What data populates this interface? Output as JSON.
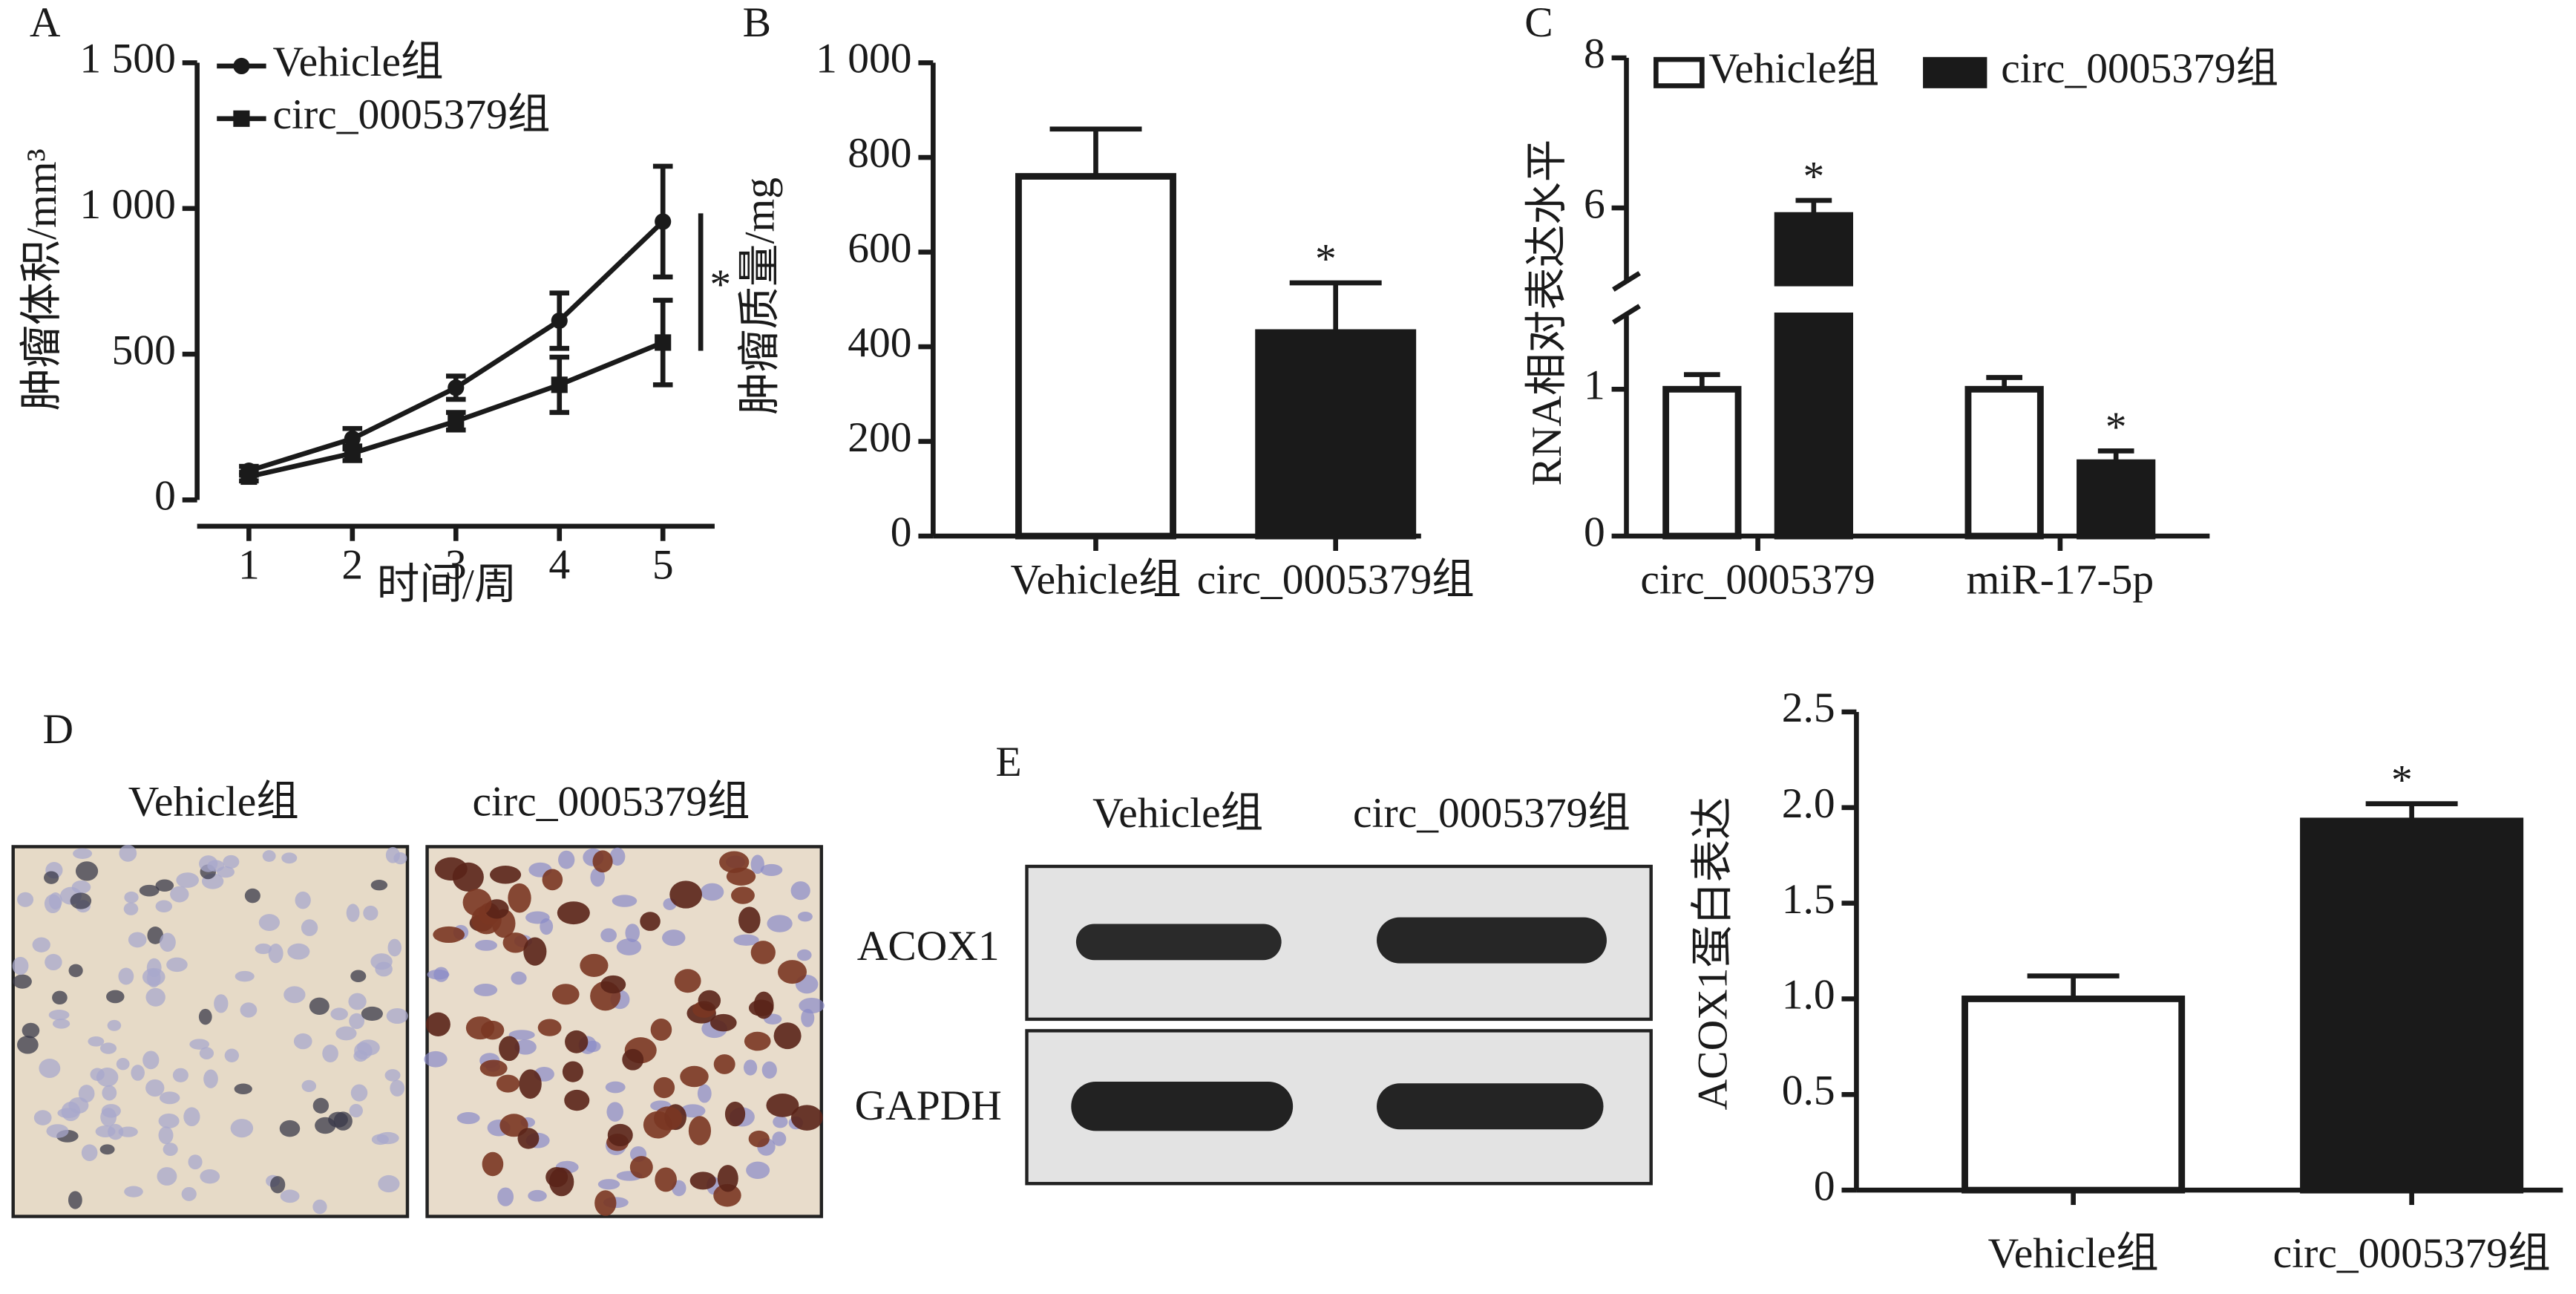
{
  "figure": {
    "panel_labels": [
      "A",
      "B",
      "C",
      "D",
      "E"
    ],
    "ihc": {
      "labels": [
        "Vehicle组",
        "circ_0005379组"
      ]
    },
    "blot": {
      "columns": [
        "Vehicle组",
        "circ_0005379组"
      ],
      "rows": [
        "ACOX1",
        "GAPDH"
      ]
    }
  },
  "chart_data": [
    {
      "type": "line",
      "y_label": "肿瘤体积/mm³",
      "x_label": "时间/周",
      "x": [
        1,
        2,
        3,
        4,
        5
      ],
      "xlim": [
        0.5,
        5.5
      ],
      "xticks": [
        1,
        2,
        3,
        4,
        5
      ],
      "ylim": [
        0,
        1500
      ],
      "yticks": [
        0,
        500,
        {
          "value": 1000,
          "label": "1 000"
        },
        {
          "value": 1500,
          "label": "1 500"
        }
      ],
      "series": [
        {
          "name": "Vehicle组",
          "color": "#1a1a1a",
          "marker": "circle",
          "values": [
            100,
            210,
            385,
            615,
            955
          ],
          "errors": [
            15,
            35,
            40,
            95,
            190
          ]
        },
        {
          "name": "circ_0005379组",
          "color": "#1a1a1a",
          "marker": "square",
          "values": [
            80,
            160,
            270,
            395,
            540
          ],
          "errors": [
            15,
            25,
            30,
            95,
            145
          ]
        }
      ],
      "annotations": [
        {
          "text": "*",
          "x": 5
        }
      ]
    },
    {
      "type": "bar",
      "y_label": "肿瘤质量/mg",
      "categories": [
        "Vehicle组",
        "circ_0005379组"
      ],
      "values": [
        760,
        430
      ],
      "errors": [
        100,
        105
      ],
      "colors": [
        "#ffffff",
        "#1a1a1a"
      ],
      "ylim": [
        0,
        1000
      ],
      "yticks": [
        0,
        200,
        400,
        600,
        800,
        {
          "value": 1000,
          "label": "1 000"
        }
      ],
      "annotations": [
        {
          "text": "*",
          "category": "circ_0005379组"
        }
      ]
    },
    {
      "type": "grouped_bar",
      "y_label": "RNA相对表达水平",
      "categories": [
        "circ_0005379",
        "miR-17-5p"
      ],
      "series": [
        {
          "name": "Vehicle组",
          "color": "#ffffff",
          "values": [
            1.0,
            1.0
          ],
          "errors": [
            0.1,
            0.08
          ]
        },
        {
          "name": "circ_0005379组",
          "color": "#1a1a1a",
          "values": [
            5.9,
            0.5
          ],
          "errors": [
            0.2,
            0.08
          ]
        }
      ],
      "ylim": [
        0,
        8
      ],
      "ybreak": [
        1.5,
        5
      ],
      "yticks": [
        0,
        1,
        6,
        8
      ],
      "annotations": [
        {
          "text": "*",
          "series": "circ_0005379组",
          "category": "circ_0005379"
        },
        {
          "text": "*",
          "series": "circ_0005379组",
          "category": "miR-17-5p"
        }
      ]
    },
    {
      "type": "bar",
      "y_label": "ACOX1蛋白表达",
      "categories": [
        "Vehicle组",
        "circ_0005379组"
      ],
      "values": [
        1.0,
        1.93
      ],
      "errors": [
        0.12,
        0.09
      ],
      "colors": [
        "#ffffff",
        "#1a1a1a"
      ],
      "ylim": [
        0,
        2.5
      ],
      "yticks": [
        0,
        0.5,
        {
          "value": 1.0,
          "label": "1.0"
        },
        1.5,
        {
          "value": 2.0,
          "label": "2.0"
        },
        2.5
      ],
      "annotations": [
        {
          "text": "*",
          "category": "circ_0005379组"
        }
      ]
    }
  ]
}
